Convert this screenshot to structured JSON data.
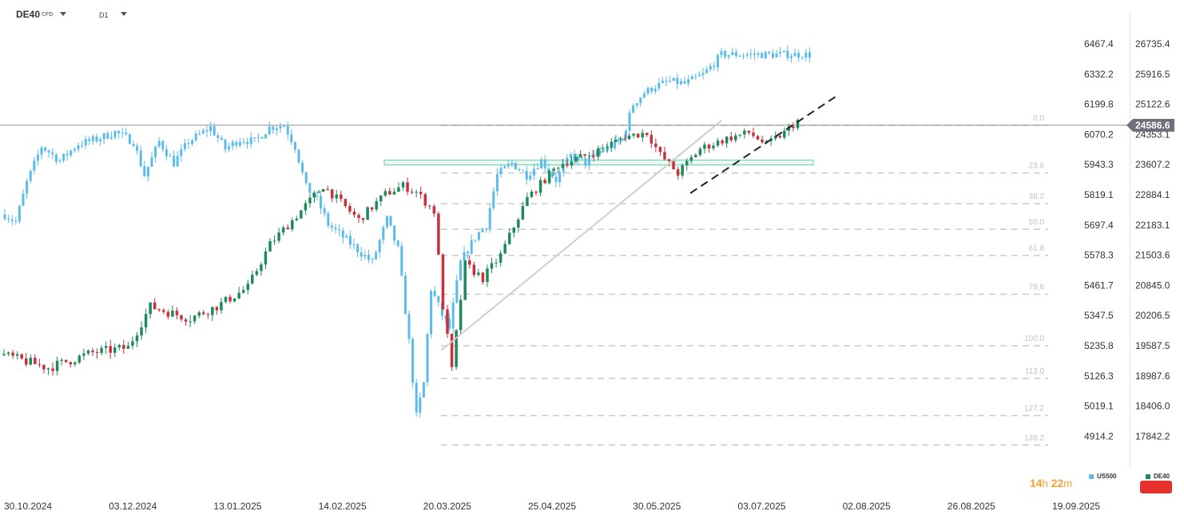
{
  "header": {
    "symbol": "DE40",
    "symbol_type": "CFD",
    "timeframe": "D1"
  },
  "timer": {
    "hours": "14",
    "h_unit": "h",
    "minutes": "22",
    "m_unit": "m"
  },
  "legend": [
    {
      "name": "US500",
      "color": "#5bbbea"
    },
    {
      "name": "DE40",
      "color": "#1f8a5a"
    }
  ],
  "colors": {
    "up": "#1f8a5a",
    "down": "#c8313a",
    "us500": "#5bbbea",
    "fib": "#c9c9c9",
    "zone": "#7ed3b2",
    "trend": "#cfcfcf",
    "price_tag": "#6e7079"
  },
  "chart_data": {
    "type": "candlestick",
    "x_labels": [
      "30.10.2024",
      "03.12.2024",
      "13.01.2025",
      "14.02.2025",
      "20.03.2025",
      "25.04.2025",
      "30.05.2025",
      "03.07.2025",
      "02.08.2025",
      "26.08.2025",
      "19.09.2025"
    ],
    "y_left": {
      "series": "US500",
      "ticks": [
        6467.4,
        6332.2,
        6199.8,
        6070.2,
        5943.3,
        5819.1,
        5697.4,
        5578.3,
        5461.7,
        5347.5,
        5235.8,
        5126.3,
        5019.1,
        4914.2
      ]
    },
    "y_right": {
      "series": "DE40",
      "ticks": [
        26735.4,
        25916.5,
        25122.6,
        24353.1,
        23607.2,
        22884.1,
        22183.1,
        21503.6,
        20845.0,
        20206.5,
        19587.5,
        18987.6,
        18406.0,
        17842.2
      ]
    },
    "current_price": "24586.6",
    "fibonacci_levels": [
      "0.0",
      "23.6",
      "38.2",
      "50.0",
      "61.8",
      "78.6",
      "100.0",
      "113.0",
      "127.2",
      "138.2"
    ],
    "series": [
      {
        "name": "DE40",
        "sessions": 180,
        "anchors": [
          [
            0,
            19400
          ],
          [
            10,
            19150
          ],
          [
            20,
            19450
          ],
          [
            28,
            19550
          ],
          [
            33,
            20400
          ],
          [
            38,
            20250
          ],
          [
            42,
            20150
          ],
          [
            48,
            20400
          ],
          [
            55,
            20800
          ],
          [
            60,
            21750
          ],
          [
            66,
            22400
          ],
          [
            72,
            23100
          ],
          [
            80,
            22300
          ],
          [
            86,
            22900
          ],
          [
            90,
            23100
          ],
          [
            93,
            22950
          ],
          [
            97,
            22500
          ],
          [
            99,
            20400
          ],
          [
            101,
            19100
          ],
          [
            104,
            21300
          ],
          [
            108,
            21000
          ],
          [
            112,
            21500
          ],
          [
            118,
            22800
          ],
          [
            125,
            23600
          ],
          [
            133,
            23900
          ],
          [
            140,
            24300
          ],
          [
            145,
            24400
          ],
          [
            148,
            23850
          ],
          [
            152,
            23400
          ],
          [
            157,
            24000
          ],
          [
            163,
            24250
          ],
          [
            168,
            24400
          ],
          [
            172,
            24100
          ],
          [
            176,
            24400
          ],
          [
            179,
            24700
          ]
        ]
      },
      {
        "name": "US500",
        "sessions": 220,
        "anchors": [
          [
            0,
            5740
          ],
          [
            3,
            5710
          ],
          [
            6,
            5870
          ],
          [
            10,
            6020
          ],
          [
            15,
            5960
          ],
          [
            20,
            6030
          ],
          [
            25,
            6050
          ],
          [
            30,
            6080
          ],
          [
            35,
            6040
          ],
          [
            38,
            5900
          ],
          [
            42,
            6040
          ],
          [
            46,
            5950
          ],
          [
            50,
            6040
          ],
          [
            56,
            6100
          ],
          [
            60,
            6010
          ],
          [
            64,
            6050
          ],
          [
            68,
            6040
          ],
          [
            72,
            6100
          ],
          [
            76,
            6110
          ],
          [
            79,
            6020
          ],
          [
            82,
            5850
          ],
          [
            85,
            5800
          ],
          [
            88,
            5700
          ],
          [
            92,
            5650
          ],
          [
            96,
            5600
          ],
          [
            100,
            5550
          ],
          [
            104,
            5720
          ],
          [
            107,
            5600
          ],
          [
            110,
            5250
          ],
          [
            112,
            4980
          ],
          [
            114,
            5100
          ],
          [
            116,
            5450
          ],
          [
            119,
            5350
          ],
          [
            121,
            5300
          ],
          [
            124,
            5550
          ],
          [
            128,
            5650
          ],
          [
            131,
            5700
          ],
          [
            134,
            5900
          ],
          [
            138,
            5950
          ],
          [
            142,
            5900
          ],
          [
            146,
            5960
          ],
          [
            150,
            5880
          ],
          [
            154,
            5980
          ],
          [
            158,
            5950
          ],
          [
            162,
            6000
          ],
          [
            165,
            6020
          ],
          [
            168,
            6050
          ],
          [
            171,
            6200
          ],
          [
            174,
            6250
          ],
          [
            177,
            6280
          ],
          [
            181,
            6300
          ],
          [
            185,
            6290
          ],
          [
            190,
            6330
          ],
          [
            193,
            6380
          ],
          [
            195,
            6420
          ]
        ]
      }
    ],
    "annotations": [
      "DE40 rising trendline (dashed)",
      "US500 rising trendline",
      "DE40 support zone"
    ]
  }
}
